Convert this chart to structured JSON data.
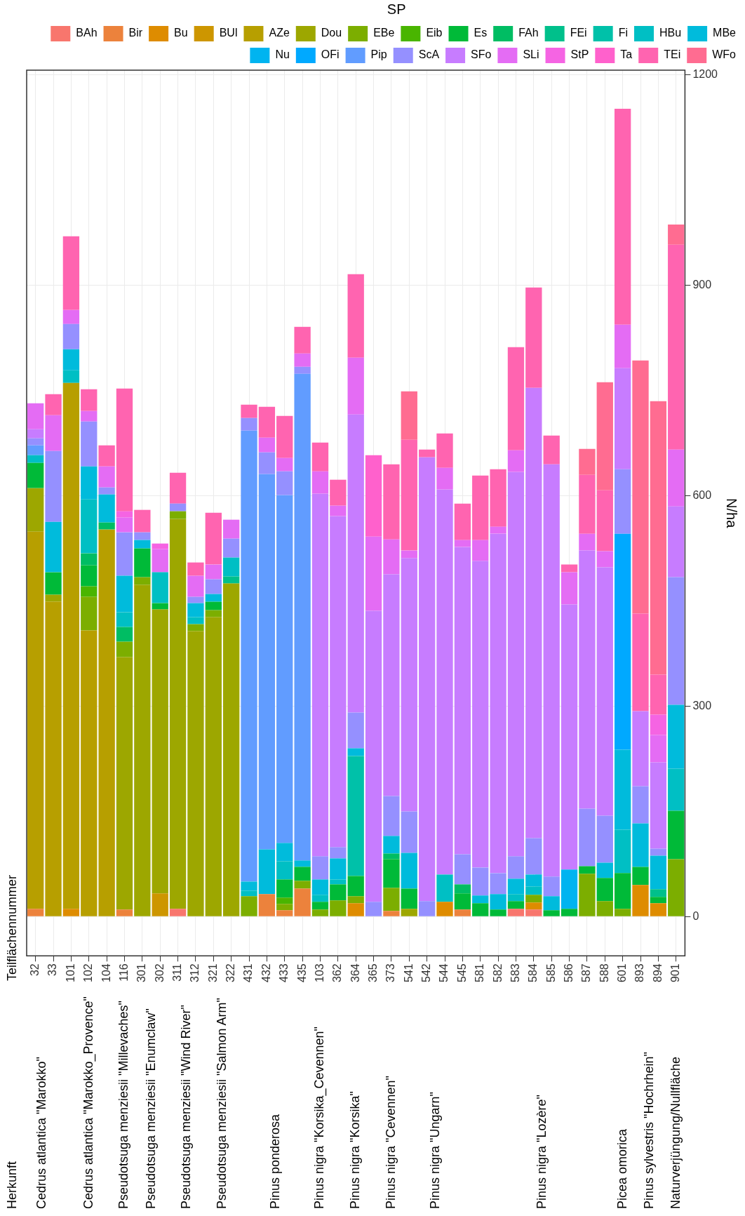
{
  "chart_data": {
    "type": "bar",
    "stacked": true,
    "ylabel": "N/ha",
    "legend_title": "SP",
    "legend": "top right",
    "grid": true,
    "categories": [
      "32",
      "33",
      "101",
      "102",
      "104",
      "116",
      "301",
      "302",
      "311",
      "312",
      "321",
      "322",
      "431",
      "432",
      "433",
      "435",
      "103",
      "362",
      "364",
      "365",
      "373",
      "541",
      "542",
      "544",
      "545",
      "581",
      "582",
      "583",
      "584",
      "585",
      "586",
      "587",
      "588",
      "601",
      "893",
      "894",
      "901"
    ],
    "ylim": [
      -56,
      1207
    ],
    "yticks": [
      0,
      300,
      600,
      900,
      1200
    ],
    "series": [
      {
        "name": "BAh",
        "color": "#f8766d",
        "values": [
          null,
          null,
          null,
          null,
          null,
          null,
          null,
          null,
          11,
          null,
          null,
          null,
          null,
          null,
          null,
          null,
          null,
          null,
          null,
          null,
          null,
          null,
          null,
          null,
          null,
          null,
          null,
          11,
          10,
          null,
          null,
          null,
          null,
          null,
          null,
          null,
          null
        ]
      },
      {
        "name": "Bir",
        "color": "#ec823c",
        "values": [
          11,
          null,
          null,
          null,
          null,
          10,
          null,
          null,
          null,
          null,
          null,
          null,
          null,
          32,
          9,
          40,
          null,
          null,
          null,
          null,
          8,
          null,
          null,
          null,
          10,
          null,
          null,
          null,
          null,
          null,
          null,
          null,
          null,
          null,
          null,
          null,
          null
        ]
      },
      {
        "name": "Bu",
        "color": "#de8c00",
        "values": [
          null,
          null,
          11,
          null,
          null,
          null,
          null,
          null,
          null,
          null,
          null,
          null,
          null,
          null,
          null,
          null,
          null,
          null,
          19,
          null,
          null,
          null,
          null,
          21,
          null,
          null,
          null,
          null,
          10,
          null,
          null,
          null,
          null,
          null,
          45,
          19,
          null
        ]
      },
      {
        "name": "BUl",
        "color": "#cd9600",
        "values": [
          null,
          null,
          null,
          null,
          null,
          null,
          null,
          33,
          null,
          null,
          null,
          null,
          null,
          null,
          null,
          null,
          null,
          null,
          null,
          null,
          null,
          null,
          null,
          null,
          null,
          null,
          null,
          null,
          null,
          null,
          null,
          null,
          null,
          null,
          null,
          null,
          null
        ]
      },
      {
        "name": "AZe",
        "color": "#b79f00",
        "values": [
          538,
          449,
          750,
          408,
          552,
          null,
          null,
          null,
          null,
          null,
          null,
          null,
          null,
          null,
          null,
          null,
          null,
          null,
          null,
          null,
          null,
          null,
          null,
          null,
          null,
          null,
          null,
          null,
          null,
          null,
          null,
          null,
          null,
          null,
          null,
          null,
          null
        ]
      },
      {
        "name": "Dou",
        "color": "#9da700",
        "values": [
          62,
          10,
          null,
          null,
          null,
          360,
          473,
          405,
          556,
          407,
          427,
          475,
          null,
          null,
          null,
          null,
          null,
          null,
          null,
          null,
          null,
          11,
          null,
          null,
          null,
          null,
          null,
          null,
          null,
          null,
          null,
          null,
          null,
          null,
          null,
          null,
          null
        ]
      },
      {
        "name": "EBe",
        "color": "#7cae00",
        "values": [
          null,
          null,
          null,
          48,
          null,
          22,
          11,
          null,
          11,
          10,
          10,
          null,
          29,
          null,
          9,
          11,
          10,
          23,
          10,
          null,
          33,
          null,
          null,
          null,
          null,
          null,
          null,
          null,
          11,
          null,
          null,
          61,
          22,
          11,
          null,
          null,
          82
        ]
      },
      {
        "name": "Eib",
        "color": "#49b500",
        "values": [
          null,
          null,
          null,
          15,
          null,
          null,
          null,
          null,
          null,
          null,
          null,
          null,
          null,
          null,
          9,
          null,
          null,
          null,
          null,
          null,
          null,
          null,
          null,
          null,
          null,
          null,
          null,
          null,
          null,
          null,
          null,
          null,
          null,
          null,
          null,
          null,
          null
        ]
      },
      {
        "name": "Es",
        "color": "#00ba38",
        "values": [
          36,
          32,
          null,
          30,
          null,
          null,
          41,
          9,
          null,
          null,
          12,
          null,
          null,
          null,
          26,
          20,
          11,
          23,
          29,
          null,
          41,
          29,
          null,
          null,
          23,
          19,
          10,
          11,
          null,
          9,
          11,
          11,
          33,
          51,
          26,
          9,
          69
        ]
      },
      {
        "name": "FAh",
        "color": "#00bd63",
        "values": [
          null,
          null,
          null,
          17,
          10,
          21,
          null,
          null,
          null,
          null,
          null,
          null,
          null,
          null,
          null,
          null,
          null,
          null,
          null,
          null,
          8,
          null,
          null,
          null,
          13,
          null,
          null,
          null,
          null,
          null,
          null,
          null,
          null,
          null,
          null,
          null,
          null
        ]
      },
      {
        "name": "FEi",
        "color": "#00c08b",
        "values": [
          null,
          null,
          null,
          null,
          null,
          null,
          null,
          null,
          null,
          null,
          null,
          10,
          null,
          null,
          null,
          null,
          null,
          null,
          null,
          null,
          null,
          null,
          null,
          null,
          null,
          null,
          null,
          null,
          null,
          null,
          null,
          null,
          null,
          null,
          null,
          11,
          null
        ]
      },
      {
        "name": "Fi",
        "color": "#00c1a9",
        "values": [
          null,
          null,
          null,
          null,
          null,
          null,
          null,
          null,
          null,
          null,
          null,
          null,
          null,
          null,
          null,
          null,
          null,
          null,
          171,
          null,
          null,
          null,
          null,
          null,
          null,
          null,
          null,
          null,
          null,
          null,
          null,
          null,
          null,
          null,
          null,
          null,
          null
        ]
      },
      {
        "name": "HBu",
        "color": "#00bfc4",
        "values": [
          11,
          null,
          18,
          77,
          null,
          21,
          null,
          44,
          null,
          10,
          null,
          27,
          8,
          null,
          26,
          null,
          10,
          7,
          null,
          null,
          null,
          null,
          null,
          39,
          null,
          null,
          null,
          10,
          12,
          null,
          null,
          null,
          null,
          62,
          null,
          null,
          60
        ]
      },
      {
        "name": "MBe",
        "color": "#00bbdc",
        "values": [
          null,
          72,
          30,
          47,
          40,
          52,
          12,
          null,
          null,
          20,
          11,
          null,
          13,
          64,
          26,
          9,
          22,
          30,
          11,
          null,
          25,
          51,
          null,
          null,
          null,
          11,
          22,
          22,
          17,
          20,
          null,
          null,
          22,
          114,
          62,
          48,
          91
        ]
      },
      {
        "name": "Nu",
        "color": "#00b4f0",
        "values": [
          null,
          null,
          null,
          null,
          null,
          null,
          null,
          null,
          null,
          null,
          null,
          null,
          null,
          null,
          null,
          null,
          null,
          null,
          null,
          null,
          null,
          null,
          null,
          null,
          null,
          null,
          null,
          null,
          null,
          null,
          56,
          null,
          null,
          null,
          null,
          null,
          null
        ]
      },
      {
        "name": "OFi",
        "color": "#00a9ff",
        "values": [
          null,
          null,
          null,
          null,
          null,
          null,
          null,
          null,
          null,
          null,
          null,
          null,
          null,
          null,
          null,
          null,
          null,
          null,
          null,
          null,
          null,
          null,
          null,
          null,
          null,
          null,
          null,
          null,
          null,
          null,
          null,
          null,
          null,
          308,
          null,
          null,
          null
        ]
      },
      {
        "name": "Pip",
        "color": "#619cff",
        "values": [
          14,
          null,
          null,
          null,
          null,
          null,
          null,
          null,
          null,
          null,
          null,
          null,
          643,
          535,
          496,
          694,
          null,
          null,
          null,
          null,
          null,
          null,
          null,
          null,
          null,
          null,
          null,
          null,
          null,
          null,
          null,
          null,
          null,
          null,
          null,
          null,
          null
        ]
      },
      {
        "name": "ScA",
        "color": "#9590ff",
        "values": [
          10,
          101,
          36,
          64,
          10,
          62,
          11,
          null,
          11,
          9,
          21,
          27,
          18,
          31,
          34,
          10,
          33,
          16,
          51,
          21,
          57,
          59,
          22,
          null,
          43,
          40,
          30,
          32,
          52,
          28,
          null,
          82,
          67,
          92,
          53,
          10,
          182
        ]
      },
      {
        "name": "SFo",
        "color": "#c77cff",
        "values": [
          13,
          null,
          null,
          null,
          null,
          null,
          null,
          null,
          null,
          null,
          null,
          null,
          null,
          null,
          null,
          null,
          517,
          472,
          425,
          415,
          316,
          361,
          633,
          549,
          438,
          437,
          484,
          548,
          642,
          588,
          378,
          368,
          354,
          144,
          107,
          123,
          101
        ]
      },
      {
        "name": "SLi",
        "color": "#e46cf4",
        "values": [
          37,
          51,
          20,
          15,
          30,
          21,
          null,
          33,
          null,
          30,
          21,
          27,
          null,
          21,
          19,
          19,
          32,
          15,
          81,
          106,
          50,
          11,
          null,
          31,
          10,
          30,
          10,
          31,
          null,
          null,
          46,
          24,
          23,
          62,
          null,
          39,
          81
        ]
      },
      {
        "name": "StP",
        "color": "#f564e3",
        "values": [
          null,
          null,
          null,
          null,
          null,
          9,
          null,
          8,
          null,
          null,
          null,
          null,
          null,
          null,
          null,
          null,
          null,
          null,
          null,
          null,
          null,
          null,
          null,
          null,
          null,
          null,
          null,
          null,
          null,
          null,
          null,
          null,
          null,
          null,
          null,
          29,
          null
        ]
      },
      {
        "name": "Ta",
        "color": "#ff61cc",
        "values": [
          null,
          null,
          null,
          null,
          null,
          null,
          null,
          null,
          null,
          null,
          null,
          null,
          null,
          null,
          null,
          null,
          null,
          null,
          null,
          116,
          null,
          null,
          null,
          null,
          null,
          null,
          null,
          null,
          null,
          null,
          null,
          null,
          null,
          null,
          null,
          null,
          null
        ]
      },
      {
        "name": "TEi",
        "color": "#ff64b0",
        "values": [
          null,
          30,
          105,
          31,
          30,
          175,
          32,
          null,
          44,
          19,
          74,
          null,
          19,
          44,
          60,
          38,
          41,
          37,
          119,
          null,
          107,
          158,
          11,
          49,
          52,
          92,
          82,
          147,
          143,
          41,
          11,
          84,
          87,
          308,
          139,
          57,
          292
        ]
      },
      {
        "name": "WFo",
        "color": "#ff6c91",
        "values": [
          null,
          null,
          null,
          null,
          null,
          null,
          null,
          null,
          null,
          null,
          null,
          null,
          null,
          null,
          null,
          null,
          null,
          null,
          null,
          null,
          null,
          69,
          null,
          null,
          null,
          null,
          null,
          null,
          null,
          null,
          null,
          37,
          154,
          null,
          361,
          390,
          29
        ]
      }
    ],
    "annotations": [
      "Teilflächennummer",
      "Herkunft",
      "Cedrus atlantica \"Marokko\"",
      "Cedrus atlantica \"Marokko_Provence\"",
      "Pseudotsuga menziesii \"Millevaches\"",
      "Pseudotsuga menziesii \"Enumclaw\"",
      "Pseudotsuga menziesii \"Wind River\"",
      "Pseudotsuga menziesii \"Salmon Arm\"",
      "Pinus ponderosa",
      "Pinus nigra \"Korsika_Cevennen\"",
      "Pinus nigra \"Korsika\"",
      "Pinus nigra \"Cevennen\"",
      "Pinus nigra \"Ungarn\"",
      "Pinus nigra \"Lozère\"",
      "Picea omorica",
      "Pinus sylvestris \"Hochrhein\"",
      "Naturverjüngung/Nullfläche"
    ]
  }
}
